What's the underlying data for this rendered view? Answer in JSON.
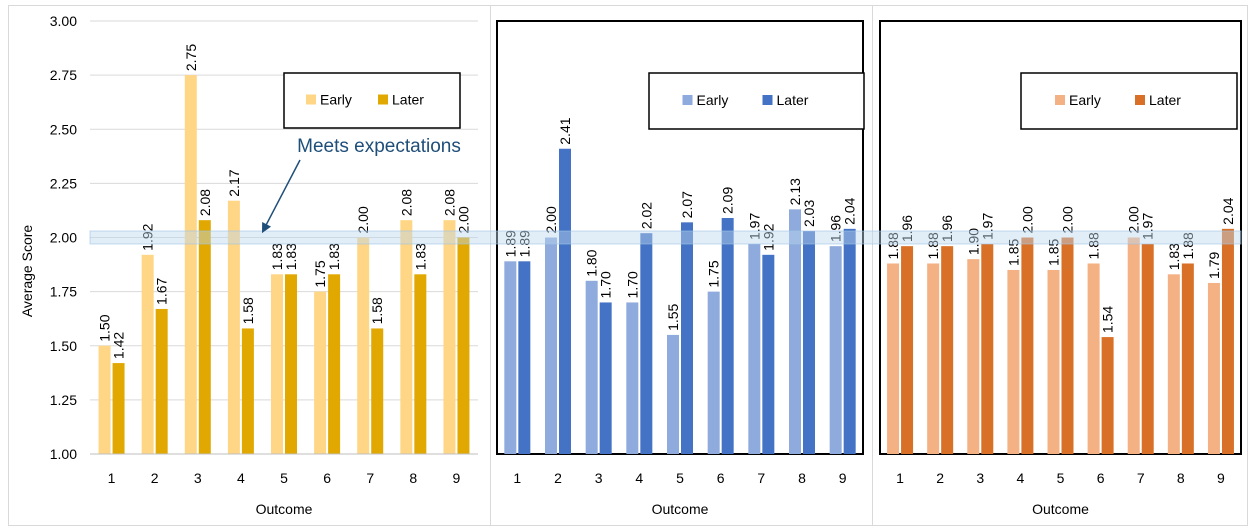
{
  "ylabel": "Average Score",
  "xlabel": "Outcome",
  "annotation": "Meets expectations",
  "colors": {
    "band": "#bdd7ee",
    "arrow": "#1f4e79",
    "annotation": "#1f4e79"
  },
  "chart_data": [
    {
      "type": "bar",
      "categories": [
        "1",
        "2",
        "3",
        "4",
        "5",
        "6",
        "7",
        "8",
        "9"
      ],
      "ylim": [
        1.0,
        3.0
      ],
      "yticks": [
        "1.00",
        "1.25",
        "1.50",
        "1.75",
        "2.00",
        "2.25",
        "2.50",
        "2.75",
        "3.00"
      ],
      "xlabel": "Outcome",
      "ylabel": "Average Score",
      "legend": "top-right",
      "reference_band": [
        1.97,
        2.03
      ],
      "annotation": "Meets expectations",
      "series": [
        {
          "name": "Early",
          "color": "#ffd685",
          "values": [
            1.5,
            1.92,
            2.75,
            2.17,
            1.83,
            1.75,
            2.0,
            2.08,
            2.08
          ]
        },
        {
          "name": "Later",
          "color": "#e0a800",
          "values": [
            1.42,
            1.67,
            2.08,
            1.58,
            1.83,
            1.83,
            1.58,
            1.83,
            2.0
          ]
        }
      ]
    },
    {
      "type": "bar",
      "categories": [
        "1",
        "2",
        "3",
        "4",
        "5",
        "6",
        "7",
        "8",
        "9"
      ],
      "ylim": [
        1.0,
        3.0
      ],
      "xlabel": "Outcome",
      "legend": "top-right",
      "reference_band": [
        1.97,
        2.03
      ],
      "series": [
        {
          "name": "Early",
          "color": "#8faadc",
          "values": [
            1.89,
            2.0,
            1.8,
            1.7,
            1.55,
            1.75,
            1.97,
            2.13,
            1.96
          ]
        },
        {
          "name": "Later",
          "color": "#4472c4",
          "values": [
            1.89,
            2.41,
            1.7,
            2.02,
            2.07,
            2.09,
            1.92,
            2.03,
            2.04
          ]
        }
      ]
    },
    {
      "type": "bar",
      "categories": [
        "1",
        "2",
        "3",
        "4",
        "5",
        "6",
        "7",
        "8",
        "9"
      ],
      "ylim": [
        1.0,
        3.0
      ],
      "xlabel": "Outcome",
      "legend": "top-right",
      "reference_band": [
        1.97,
        2.03
      ],
      "series": [
        {
          "name": "Early",
          "color": "#f4b183",
          "values": [
            1.88,
            1.88,
            1.9,
            1.85,
            1.85,
            1.88,
            2.0,
            1.83,
            1.79
          ]
        },
        {
          "name": "Later",
          "color": "#d97028",
          "values": [
            1.96,
            1.96,
            1.97,
            2.0,
            2.0,
            1.54,
            1.97,
            1.88,
            2.04
          ]
        }
      ]
    }
  ]
}
